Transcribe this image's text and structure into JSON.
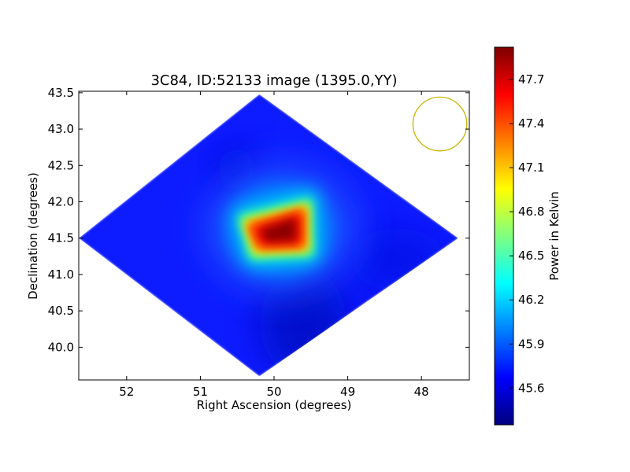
{
  "chart_data": {
    "type": "heatmap",
    "title": "3C84, ID:52133 image (1395.0,YY)",
    "xlabel": "Right Ascension (degrees)",
    "ylabel": "Declination (degrees)",
    "xlim": [
      52.65,
      47.35
    ],
    "ylim": [
      39.55,
      43.52
    ],
    "x_ticks": [
      52,
      51,
      50,
      49,
      48
    ],
    "x_tick_labels": [
      "52",
      "51",
      "50",
      "49",
      "48"
    ],
    "y_ticks": [
      40.0,
      40.5,
      41.0,
      41.5,
      42.0,
      42.5,
      43.0,
      43.5
    ],
    "y_tick_labels": [
      "40.0",
      "40.5",
      "41.0",
      "41.5",
      "42.0",
      "42.5",
      "43.0",
      "43.5"
    ],
    "colormap": "jet",
    "colorbar": {
      "label": "Power in Kelvin",
      "range": [
        45.35,
        47.92
      ],
      "ticks": [
        45.6,
        45.9,
        46.2,
        46.5,
        46.8,
        47.1,
        47.4,
        47.7
      ],
      "tick_labels": [
        "45.6",
        "45.9",
        "46.2",
        "46.5",
        "46.8",
        "47.1",
        "47.4",
        "47.7"
      ]
    },
    "map_footprint": {
      "shape": "diamond",
      "vertices": [
        [
          50.2,
          43.48
        ],
        [
          47.5,
          41.5
        ],
        [
          50.2,
          39.6
        ],
        [
          52.65,
          41.5
        ]
      ]
    },
    "source": {
      "ra": 49.95,
      "dec": 41.51,
      "peak_power": 47.9
    },
    "background_power": 45.6,
    "beam_marker": {
      "ra": 47.75,
      "dec": 43.07,
      "radius_deg": 0.37,
      "color": "#c8b400"
    },
    "colors": {
      "frame": "#000000",
      "beam": "#c8b400"
    }
  }
}
